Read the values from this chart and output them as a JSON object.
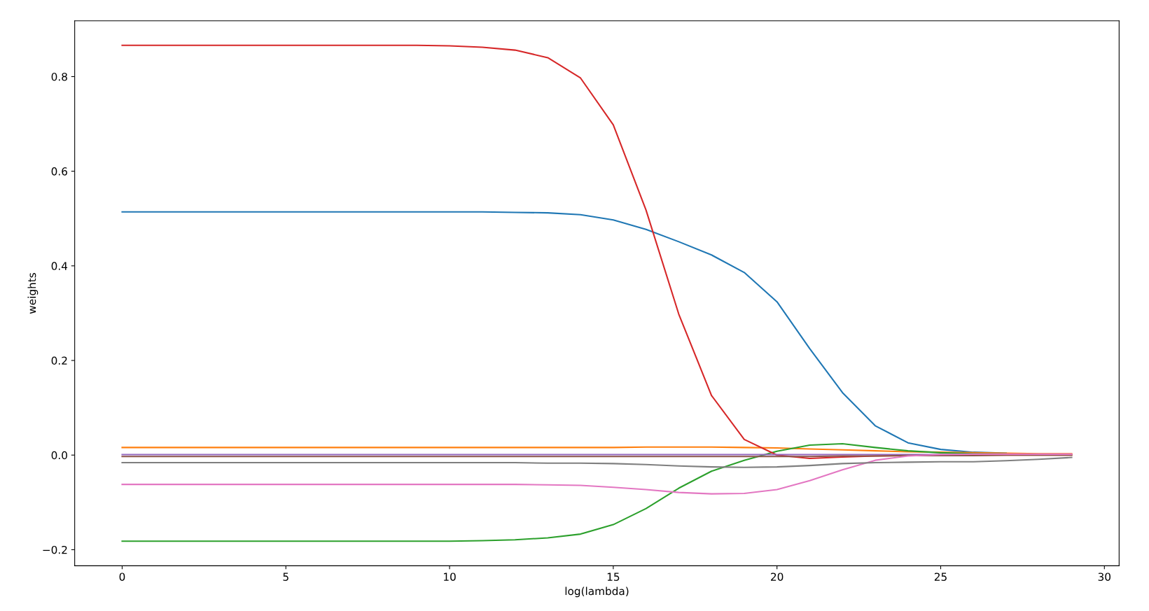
{
  "chart_data": {
    "type": "line",
    "xlabel": "log(lambda)",
    "ylabel": "weights",
    "x": [
      0,
      1,
      2,
      3,
      4,
      5,
      6,
      7,
      8,
      9,
      10,
      11,
      12,
      13,
      14,
      15,
      16,
      17,
      18,
      19,
      20,
      21,
      22,
      23,
      24,
      25,
      26,
      27,
      28,
      29
    ],
    "series": [
      {
        "color": "#1f77b4",
        "values": [
          0.514,
          0.514,
          0.514,
          0.514,
          0.514,
          0.514,
          0.514,
          0.514,
          0.514,
          0.514,
          0.514,
          0.514,
          0.513,
          0.512,
          0.508,
          0.497,
          0.477,
          0.451,
          0.423,
          0.386,
          0.324,
          0.225,
          0.132,
          0.062,
          0.026,
          0.012,
          0.006,
          0.004,
          null,
          null
        ]
      },
      {
        "color": "#ff7f0e",
        "values": [
          0.016,
          0.016,
          0.016,
          0.016,
          0.016,
          0.016,
          0.016,
          0.016,
          0.016,
          0.016,
          0.016,
          0.016,
          0.016,
          0.016,
          0.016,
          0.016,
          0.017,
          0.017,
          0.017,
          0.016,
          0.015,
          0.013,
          0.011,
          0.009,
          0.007,
          0.006,
          0.005,
          0.004,
          0.003,
          0.003
        ]
      },
      {
        "color": "#2ca02c",
        "values": [
          -0.182,
          -0.182,
          -0.182,
          -0.182,
          -0.182,
          -0.182,
          -0.182,
          -0.182,
          -0.182,
          -0.182,
          -0.182,
          -0.181,
          -0.179,
          -0.175,
          -0.167,
          -0.147,
          -0.113,
          -0.07,
          -0.034,
          -0.011,
          0.008,
          0.021,
          0.024,
          0.016,
          0.009,
          0.005,
          0.003,
          0.002,
          null,
          null
        ]
      },
      {
        "color": "#d62728",
        "values": [
          0.866,
          0.866,
          0.866,
          0.866,
          0.866,
          0.866,
          0.866,
          0.866,
          0.866,
          0.866,
          0.865,
          0.862,
          0.856,
          0.84,
          0.797,
          0.698,
          0.518,
          0.298,
          0.126,
          0.033,
          0.0,
          -0.007,
          -0.004,
          -0.002,
          -0.001,
          0.0,
          0.0,
          0.0,
          0.0,
          0.0
        ]
      },
      {
        "color": "#9467bd",
        "values": [
          0.001,
          0.001,
          0.001,
          0.001,
          0.001,
          0.001,
          0.001,
          0.001,
          0.001,
          0.001,
          0.001,
          0.001,
          0.001,
          0.001,
          0.001,
          0.001,
          0.001,
          0.001,
          0.001,
          0.001,
          0.001,
          0.001,
          0.001,
          0.001,
          0.001,
          0.001,
          0.001,
          null,
          null,
          null
        ]
      },
      {
        "color": "#8c564b",
        "values": [
          -0.003,
          -0.003,
          -0.003,
          -0.003,
          -0.003,
          -0.003,
          -0.003,
          -0.003,
          -0.003,
          -0.003,
          -0.003,
          -0.003,
          -0.003,
          -0.003,
          -0.003,
          -0.003,
          -0.003,
          -0.003,
          -0.003,
          -0.003,
          -0.003,
          -0.003,
          -0.002,
          -0.002,
          -0.001,
          -0.001,
          -0.001,
          0.0,
          0.0,
          0.0
        ]
      },
      {
        "color": "#e377c2",
        "values": [
          -0.062,
          -0.062,
          -0.062,
          -0.062,
          -0.062,
          -0.062,
          -0.062,
          -0.062,
          -0.062,
          -0.062,
          -0.062,
          -0.062,
          -0.062,
          -0.063,
          -0.064,
          -0.068,
          -0.073,
          -0.079,
          -0.082,
          -0.081,
          -0.073,
          -0.054,
          -0.031,
          -0.011,
          -0.002,
          0.001,
          0.002,
          0.002,
          0.002,
          0.002
        ]
      },
      {
        "color": "#7f7f7f",
        "values": [
          -0.016,
          -0.016,
          -0.016,
          -0.016,
          -0.016,
          -0.016,
          -0.016,
          -0.016,
          -0.016,
          -0.016,
          -0.016,
          -0.016,
          -0.016,
          -0.017,
          -0.017,
          -0.018,
          -0.02,
          -0.023,
          -0.025,
          -0.026,
          -0.025,
          -0.022,
          -0.018,
          -0.016,
          -0.015,
          -0.014,
          -0.014,
          -0.012,
          -0.009,
          -0.005
        ]
      }
    ],
    "xlim": [
      -1.45,
      30.45
    ],
    "xticks": [
      0,
      5,
      10,
      15,
      20,
      25,
      30
    ],
    "ylim": [
      -0.234,
      0.918
    ],
    "yticks": [
      {
        "value": -0.2,
        "label": "−0.2"
      },
      {
        "value": 0.0,
        "label": "0.0"
      },
      {
        "value": 0.2,
        "label": "0.2"
      },
      {
        "value": 0.4,
        "label": "0.4"
      },
      {
        "value": 0.6,
        "label": "0.6"
      },
      {
        "value": 0.8,
        "label": "0.8"
      }
    ],
    "grid": false
  }
}
